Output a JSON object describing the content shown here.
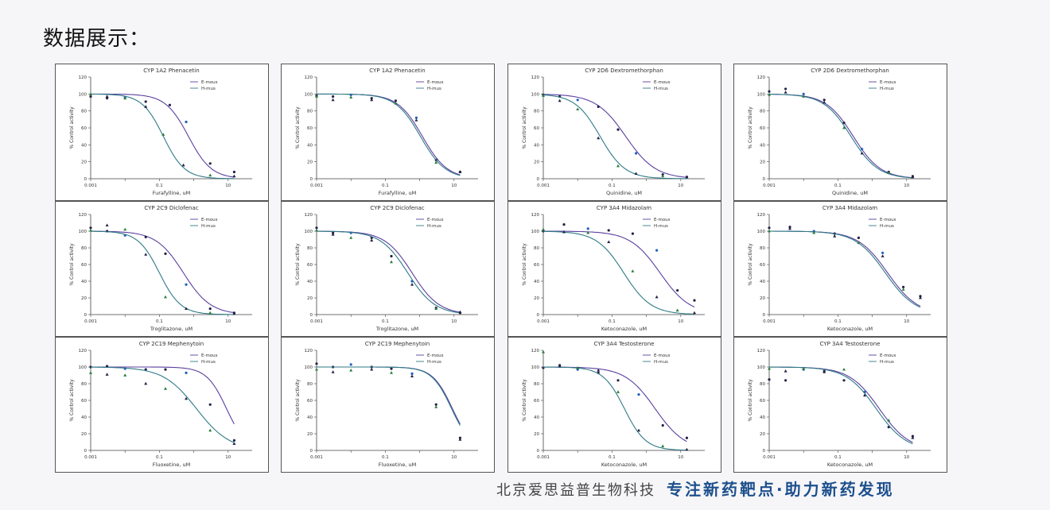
{
  "heading": "数据展示：",
  "footer": {
    "company": "北京爱思益普生物科技",
    "slogan": "专注新药靶点·助力新药发现"
  },
  "colors": {
    "curve_a": "#5b3fa0",
    "curve_b": "#2f7a86",
    "marker_a": "#222244",
    "marker_b": "#2a7d3c",
    "marker_c": "#1f5fbf"
  },
  "chart_data": [
    {
      "type": "scatter",
      "title": "CYP 1A2 Phenacetin",
      "xlabel": "Furafylline, uM",
      "ylabel": "% Control activity",
      "xlim": [
        0.001,
        50
      ],
      "ylim": [
        0,
        120
      ],
      "xticks": [
        "0.001",
        "0.1",
        "10"
      ],
      "yticks": [
        0,
        20,
        40,
        60,
        80,
        100,
        120
      ],
      "legend": [
        "E-mous",
        "H-mus"
      ],
      "series": [
        {
          "name": "E-mous",
          "ic50": 0.7,
          "hill": 1.3,
          "x": [
            0.001,
            0.003,
            0.01,
            0.04,
            0.2,
            0.6,
            3,
            15
          ],
          "y": [
            97,
            95,
            96,
            91,
            87,
            67,
            18,
            8
          ]
        },
        {
          "name": "H-mus",
          "ic50": 0.13,
          "hill": 1.4,
          "x": [
            0.001,
            0.003,
            0.01,
            0.04,
            0.13,
            0.5,
            3,
            15
          ],
          "y": [
            100,
            97,
            95,
            85,
            52,
            16,
            4,
            3
          ]
        }
      ]
    },
    {
      "type": "scatter",
      "title": "CYP 1A2 Phenacetin",
      "xlabel": "Furafylline, uM",
      "ylabel": "% Control activity",
      "xlim": [
        0.001,
        50
      ],
      "ylim": [
        0,
        120
      ],
      "xticks": [
        "0.001",
        "0.1",
        "10"
      ],
      "yticks": [
        0,
        20,
        40,
        60,
        80,
        100,
        120
      ],
      "legend": [
        "E-mous",
        "H-mus"
      ],
      "series": [
        {
          "name": "E-mous",
          "ic50": 1.2,
          "hill": 1.2,
          "x": [
            0.001,
            0.003,
            0.01,
            0.04,
            0.2,
            0.8,
            3,
            15
          ],
          "y": [
            98,
            97,
            99,
            95,
            92,
            72,
            22,
            8
          ]
        },
        {
          "name": "H-mus",
          "ic50": 1.05,
          "hill": 1.2,
          "x": [
            0.001,
            0.003,
            0.01,
            0.04,
            0.2,
            0.8,
            3,
            15
          ],
          "y": [
            97,
            93,
            96,
            93,
            89,
            69,
            19,
            8
          ]
        }
      ]
    },
    {
      "type": "scatter",
      "title": "CYP 2D6 Dextromethorphan",
      "xlabel": "Quinidine, uM",
      "ylabel": "% Control activity",
      "xlim": [
        0.001,
        50
      ],
      "ylim": [
        0,
        120
      ],
      "xticks": [
        "0.001",
        "0.1",
        "10"
      ],
      "yticks": [
        0,
        20,
        40,
        60,
        80,
        100,
        120
      ],
      "legend": [
        "E-mous",
        "H-mus"
      ],
      "series": [
        {
          "name": "E-mous",
          "ic50": 0.25,
          "hill": 1.0,
          "x": [
            0.001,
            0.003,
            0.01,
            0.04,
            0.15,
            0.5,
            3,
            15
          ],
          "y": [
            99,
            97,
            93,
            85,
            58,
            30,
            5,
            2
          ]
        },
        {
          "name": "H-mus",
          "ic50": 0.045,
          "hill": 1.2,
          "x": [
            0.001,
            0.003,
            0.01,
            0.04,
            0.15,
            0.5,
            3,
            15
          ],
          "y": [
            98,
            92,
            82,
            48,
            15,
            6,
            3,
            2
          ]
        }
      ]
    },
    {
      "type": "scatter",
      "title": "CYP 2D6 Dextromethorphan",
      "xlabel": "Quinidine, uM",
      "ylabel": "% Control activity",
      "xlim": [
        0.001,
        50
      ],
      "ylim": [
        0,
        120
      ],
      "xticks": [
        "0.001",
        "0.1",
        "10"
      ],
      "yticks": [
        0,
        20,
        40,
        60,
        80,
        100,
        120
      ],
      "legend": [
        "E-mous",
        "H-mus"
      ],
      "series": [
        {
          "name": "E-mous",
          "ic50": 0.28,
          "hill": 1.1,
          "x": [
            0.001,
            0.003,
            0.01,
            0.04,
            0.15,
            0.5,
            3,
            15
          ],
          "y": [
            103,
            106,
            100,
            93,
            66,
            35,
            8,
            3
          ]
        },
        {
          "name": "H-mus",
          "ic50": 0.24,
          "hill": 1.1,
          "x": [
            0.001,
            0.003,
            0.01,
            0.04,
            0.15,
            0.5,
            3,
            15
          ],
          "y": [
            99,
            102,
            97,
            90,
            60,
            30,
            7,
            2
          ]
        }
      ]
    },
    {
      "type": "scatter",
      "title": "CYP 2C9 Diclofenac",
      "xlabel": "Troglitazone, uM",
      "ylabel": "% Control activity",
      "xlim": [
        0.001,
        50
      ],
      "ylim": [
        0,
        120
      ],
      "xticks": [
        "0.001",
        "0.1",
        "10"
      ],
      "yticks": [
        0,
        20,
        40,
        60,
        80,
        100,
        120
      ],
      "legend": [
        "E-mous",
        "H-mus"
      ],
      "series": [
        {
          "name": "E-mous",
          "ic50": 0.5,
          "hill": 1.1,
          "x": [
            0.001,
            0.003,
            0.01,
            0.04,
            0.15,
            0.6,
            3,
            15
          ],
          "y": [
            104,
            100,
            95,
            93,
            73,
            36,
            7,
            2
          ]
        },
        {
          "name": "H-mus",
          "ic50": 0.1,
          "hill": 1.4,
          "x": [
            0.001,
            0.003,
            0.01,
            0.04,
            0.15,
            0.6,
            3,
            15
          ],
          "y": [
            101,
            107,
            102,
            72,
            21,
            7,
            2,
            1
          ]
        }
      ]
    },
    {
      "type": "scatter",
      "title": "CYP 2C9 Diclofenac",
      "xlabel": "Troglitazone, uM",
      "ylabel": "% Control activity",
      "xlim": [
        0.001,
        50
      ],
      "ylim": [
        0,
        120
      ],
      "xticks": [
        "0.001",
        "0.1",
        "10"
      ],
      "yticks": [
        0,
        20,
        40,
        60,
        80,
        100,
        120
      ],
      "legend": [
        "E-mous",
        "H-mus"
      ],
      "series": [
        {
          "name": "E-mous",
          "ic50": 0.6,
          "hill": 1.1,
          "x": [
            0.001,
            0.003,
            0.01,
            0.04,
            0.15,
            0.6,
            3,
            15
          ],
          "y": [
            104,
            98,
            98,
            92,
            70,
            40,
            8,
            2
          ]
        },
        {
          "name": "H-mus",
          "ic50": 0.45,
          "hill": 1.1,
          "x": [
            0.001,
            0.003,
            0.01,
            0.04,
            0.15,
            0.6,
            3,
            15
          ],
          "y": [
            101,
            96,
            92,
            89,
            63,
            36,
            7,
            3
          ]
        }
      ]
    },
    {
      "type": "scatter",
      "title": "CYP 3A4 Midazolam",
      "xlabel": "Ketoconazole, uM",
      "ylabel": "% Control activity",
      "xlim": [
        0.001,
        50
      ],
      "ylim": [
        0,
        120
      ],
      "xticks": [
        "0.001",
        "0.1",
        "10"
      ],
      "yticks": [
        0,
        20,
        40,
        60,
        80,
        100,
        120
      ],
      "legend": [
        "E-mous",
        "H-mus"
      ],
      "series": [
        {
          "name": "E-mous",
          "ic50": 2.5,
          "hill": 1.0,
          "x": [
            0.001,
            0.004,
            0.02,
            0.08,
            0.4,
            2,
            8,
            25
          ],
          "y": [
            100,
            108,
            103,
            101,
            97,
            77,
            29,
            17
          ]
        },
        {
          "name": "H-mus",
          "ic50": 0.22,
          "hill": 1.1,
          "x": [
            0.001,
            0.004,
            0.02,
            0.08,
            0.4,
            2,
            8,
            25
          ],
          "y": [
            102,
            99,
            98,
            87,
            52,
            21,
            5,
            2
          ]
        }
      ]
    },
    {
      "type": "scatter",
      "title": "CYP 3A4 Midazolam",
      "xlabel": "Ketoconazole, uM",
      "ylabel": "% Control activity",
      "xlim": [
        0.001,
        50
      ],
      "ylim": [
        0,
        120
      ],
      "xticks": [
        "0.001",
        "0.1",
        "10"
      ],
      "yticks": [
        0,
        20,
        40,
        60,
        80,
        100,
        120
      ],
      "legend": [
        "E-mous",
        "H-mus"
      ],
      "series": [
        {
          "name": "E-mous",
          "ic50": 2.8,
          "hill": 1.0,
          "x": [
            0.001,
            0.004,
            0.02,
            0.08,
            0.4,
            2,
            8,
            25
          ],
          "y": [
            104,
            105,
            100,
            97,
            92,
            74,
            33,
            22
          ]
        },
        {
          "name": "H-mus",
          "ic50": 2.4,
          "hill": 1.0,
          "x": [
            0.001,
            0.004,
            0.02,
            0.08,
            0.4,
            2,
            8,
            25
          ],
          "y": [
            100,
            103,
            98,
            94,
            86,
            70,
            30,
            20
          ]
        }
      ]
    },
    {
      "type": "scatter",
      "title": "CYP 2C19 Mephenytoin",
      "xlabel": "Fluoxetine, uM",
      "ylabel": "% Control activity",
      "xlim": [
        0.001,
        50
      ],
      "ylim": [
        0,
        120
      ],
      "xticks": [
        "0.001",
        "0.1",
        "10"
      ],
      "yticks": [
        0,
        20,
        40,
        60,
        80,
        100,
        120
      ],
      "legend": [
        "E-mous",
        "H-mus"
      ],
      "series": [
        {
          "name": "E-mous",
          "ic50": 9,
          "hill": 1.5,
          "x": [
            0.001,
            0.003,
            0.01,
            0.04,
            0.15,
            0.6,
            3,
            15
          ],
          "y": [
            100,
            101,
            98,
            97,
            97,
            93,
            55,
            12
          ]
        },
        {
          "name": "H-mus",
          "ic50": 1.2,
          "hill": 0.9,
          "x": [
            0.001,
            0.003,
            0.01,
            0.04,
            0.15,
            0.6,
            3,
            15
          ],
          "y": [
            93,
            91,
            90,
            80,
            74,
            62,
            24,
            8
          ]
        }
      ]
    },
    {
      "type": "scatter",
      "title": "CYP 2C19 Mephenytoin",
      "xlabel": "Fluoxetine, uM",
      "ylabel": "% Control activity",
      "xlim": [
        0.001,
        50
      ],
      "ylim": [
        0,
        120
      ],
      "xticks": [
        "0.001",
        "0.1",
        "10"
      ],
      "yticks": [
        0,
        20,
        40,
        60,
        80,
        100,
        120
      ],
      "legend": [
        "E-mous",
        "H-mus"
      ],
      "series": [
        {
          "name": "E-mous",
          "ic50": 9,
          "hill": 1.5,
          "x": [
            0.001,
            0.003,
            0.01,
            0.04,
            0.15,
            0.6,
            3,
            15
          ],
          "y": [
            104,
            100,
            103,
            100,
            98,
            92,
            55,
            15
          ]
        },
        {
          "name": "H-mus",
          "ic50": 8.5,
          "hill": 1.5,
          "x": [
            0.001,
            0.003,
            0.01,
            0.04,
            0.15,
            0.6,
            3,
            15
          ],
          "y": [
            97,
            94,
            96,
            97,
            93,
            89,
            52,
            13
          ]
        }
      ]
    },
    {
      "type": "scatter",
      "title": "CYP 3A4 Testosterone",
      "xlabel": "Ketoconazole, uM",
      "ylabel": "% Control activity",
      "xlim": [
        0.001,
        50
      ],
      "ylim": [
        0,
        120
      ],
      "xticks": [
        "0.001",
        "0.1",
        "10"
      ],
      "yticks": [
        0,
        20,
        40,
        60,
        80,
        100,
        120
      ],
      "legend": [
        "E-mous",
        "H-mus"
      ],
      "series": [
        {
          "name": "E-mous",
          "ic50": 1.8,
          "hill": 1.0,
          "x": [
            0.001,
            0.003,
            0.01,
            0.04,
            0.15,
            0.6,
            3,
            15
          ],
          "y": [
            99,
            102,
            97,
            93,
            84,
            67,
            30,
            15
          ]
        },
        {
          "name": "H-mus",
          "ic50": 0.23,
          "hill": 1.4,
          "x": [
            0.001,
            0.003,
            0.01,
            0.04,
            0.15,
            0.6,
            3,
            15
          ],
          "y": [
            118,
            101,
            99,
            96,
            70,
            24,
            5,
            1
          ]
        }
      ]
    },
    {
      "type": "scatter",
      "title": "CYP 3A4 Testosterone",
      "xlabel": "Ketoconazole, uM",
      "ylabel": "% Control activity",
      "xlim": [
        0.001,
        50
      ],
      "ylim": [
        0,
        120
      ],
      "xticks": [
        "0.001",
        "0.1",
        "10"
      ],
      "yticks": [
        0,
        20,
        40,
        60,
        80,
        100,
        120
      ],
      "legend": [
        "E-mous",
        "H-mus"
      ],
      "series": [
        {
          "name": "E-mous",
          "ic50": 1.6,
          "hill": 1.0,
          "x": [
            0.001,
            0.003,
            0.01,
            0.04,
            0.15,
            0.6,
            3,
            15
          ],
          "y": [
            85,
            84,
            97,
            95,
            84,
            70,
            28,
            17
          ]
        },
        {
          "name": "H-mus",
          "ic50": 1.3,
          "hill": 1.0,
          "x": [
            0.001,
            0.003,
            0.01,
            0.04,
            0.15,
            0.6,
            3,
            15
          ],
          "y": [
            98,
            95,
            98,
            94,
            97,
            66,
            36,
            15
          ]
        }
      ]
    }
  ]
}
